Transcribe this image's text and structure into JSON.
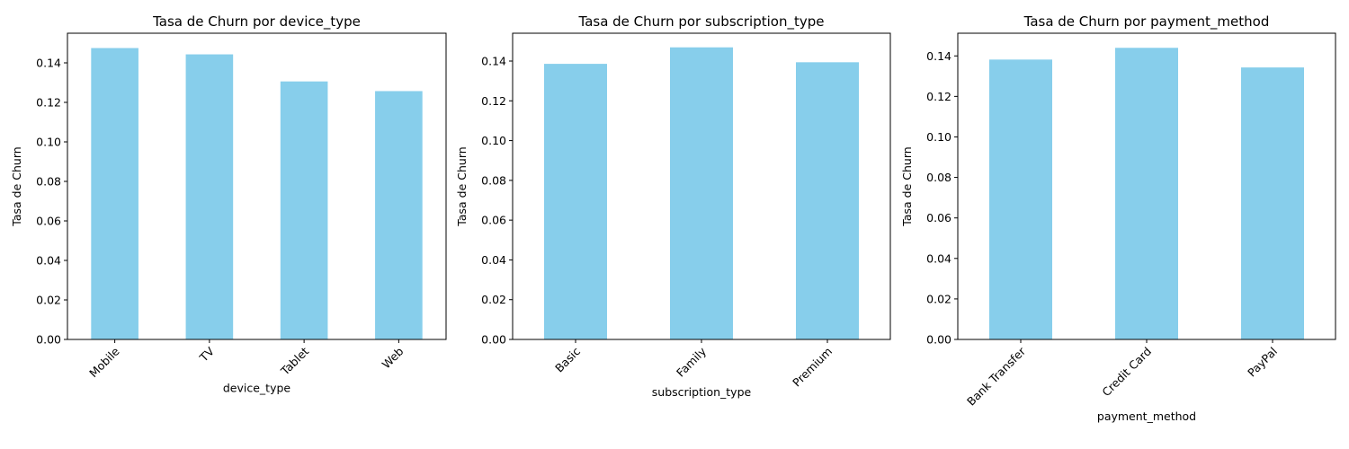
{
  "chart_data": [
    {
      "type": "bar",
      "title": "Tasa de Churn por device_type",
      "xlabel": "device_type",
      "ylabel": "Tasa de Churn",
      "categories": [
        "Mobile",
        "TV",
        "Tablet",
        "Web"
      ],
      "values": [
        0.1475,
        0.1443,
        0.1306,
        0.1257
      ],
      "ylim": [
        0,
        0.155
      ],
      "yticks": [
        "0.00",
        "0.02",
        "0.04",
        "0.06",
        "0.08",
        "0.10",
        "0.12",
        "0.14"
      ],
      "color": "#87ceeb",
      "grid": false
    },
    {
      "type": "bar",
      "title": "Tasa de Churn por subscription_type",
      "xlabel": "subscription_type",
      "ylabel": "Tasa de Churn",
      "categories": [
        "Basic",
        "Family",
        "Premium"
      ],
      "values": [
        0.1386,
        0.1469,
        0.1394
      ],
      "ylim": [
        0,
        0.154
      ],
      "yticks": [
        "0.00",
        "0.02",
        "0.04",
        "0.06",
        "0.08",
        "0.10",
        "0.12",
        "0.14"
      ],
      "color": "#87ceeb",
      "grid": false
    },
    {
      "type": "bar",
      "title": "Tasa de Churn por payment_method",
      "xlabel": "payment_method",
      "ylabel": "Tasa de Churn",
      "categories": [
        "Bank Transfer",
        "Credit Card",
        "PayPal"
      ],
      "values": [
        0.1382,
        0.144,
        0.1343
      ],
      "ylim": [
        0,
        0.1512
      ],
      "yticks": [
        "0.00",
        "0.02",
        "0.04",
        "0.06",
        "0.08",
        "0.10",
        "0.12",
        "0.14"
      ],
      "color": "#87ceeb",
      "grid": false
    }
  ]
}
